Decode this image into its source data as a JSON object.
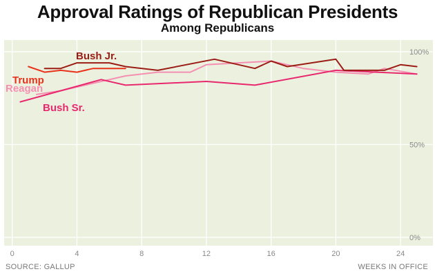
{
  "header": {
    "title": "Approval Ratings of Republican Presidents",
    "subtitle": "Among Republicans"
  },
  "footer": {
    "source": "SOURCE: GALLUP",
    "x_caption": "WEEKS IN OFFICE"
  },
  "colors": {
    "background": "#ecf1df",
    "gridline": "#ffffff",
    "tick_label": "#888888"
  },
  "chart_data": {
    "type": "line",
    "title": "Approval Ratings of Republican Presidents",
    "subtitle": "Among Republicans",
    "xlabel": "WEEKS IN OFFICE",
    "ylabel": "",
    "xlim": [
      -0.5,
      26
    ],
    "ylim": [
      0,
      100
    ],
    "x_ticks": [
      0,
      4,
      8,
      12,
      16,
      20,
      24
    ],
    "x_tick_labels": [
      "0",
      "4",
      "8",
      "12",
      "16",
      "20",
      "24"
    ],
    "y_ticks": [
      0,
      50,
      100
    ],
    "y_tick_labels": [
      "0%",
      "50%",
      "100%"
    ],
    "grid": true,
    "legend": "direct labels",
    "series": [
      {
        "name": "Reagan",
        "color": "#f48fb1",
        "x": [
          1.5,
          3,
          5,
          7,
          9,
          11,
          12,
          14,
          16,
          18,
          20,
          22,
          23,
          25
        ],
        "y": [
          77,
          79,
          83,
          87,
          89,
          89,
          93,
          94,
          95,
          91,
          89,
          88,
          91,
          88
        ]
      },
      {
        "name": "Bush Sr.",
        "color": "#e8286e",
        "x": [
          0.5,
          3,
          5.5,
          7,
          12,
          15,
          20,
          25
        ],
        "y": [
          73,
          79,
          85,
          82,
          84,
          82,
          90,
          88
        ]
      },
      {
        "name": "Bush Jr.",
        "color": "#9b1c14",
        "x": [
          2,
          3,
          4,
          6,
          7,
          9,
          12.5,
          15,
          16,
          17,
          20,
          20.5,
          23,
          24,
          25
        ],
        "y": [
          91,
          91,
          94,
          94,
          92,
          90,
          96,
          91,
          95,
          92,
          96,
          90,
          90,
          93,
          92
        ]
      },
      {
        "name": "Trump",
        "color": "#e8321a",
        "x": [
          1,
          2,
          3,
          4,
          5,
          7
        ],
        "y": [
          92,
          89,
          90,
          89,
          91,
          91
        ]
      }
    ],
    "annotations": [
      "Bush Jr.",
      "Trump",
      "Reagan",
      "Bush Sr."
    ]
  }
}
